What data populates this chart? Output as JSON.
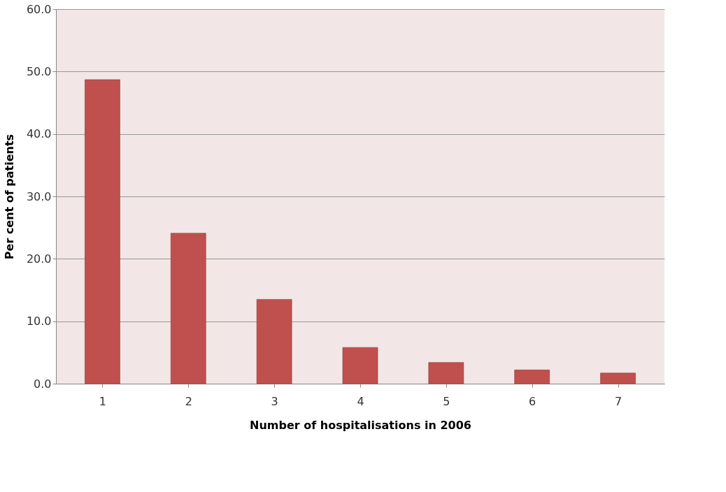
{
  "chart_data": {
    "type": "bar",
    "xlabel": "Number of hospitalisations  in 2006",
    "ylabel": "Per cent of patients",
    "categories": [
      "1",
      "2",
      "3",
      "4",
      "5",
      "6",
      "7"
    ],
    "values": [
      48.7,
      24.1,
      13.5,
      5.8,
      3.4,
      2.2,
      1.7
    ],
    "color": "#c0504d",
    "ylim": [
      0,
      60
    ],
    "yticks": [
      {
        "value": 0,
        "label": "0.0"
      },
      {
        "value": 10,
        "label": "10.0"
      },
      {
        "value": 20,
        "label": "20.0"
      },
      {
        "value": 30,
        "label": "30.0"
      },
      {
        "value": 40,
        "label": "40.0"
      },
      {
        "value": 50,
        "label": "50.0"
      },
      {
        "value": 60,
        "label": "60.0"
      }
    ],
    "grid": "y"
  }
}
